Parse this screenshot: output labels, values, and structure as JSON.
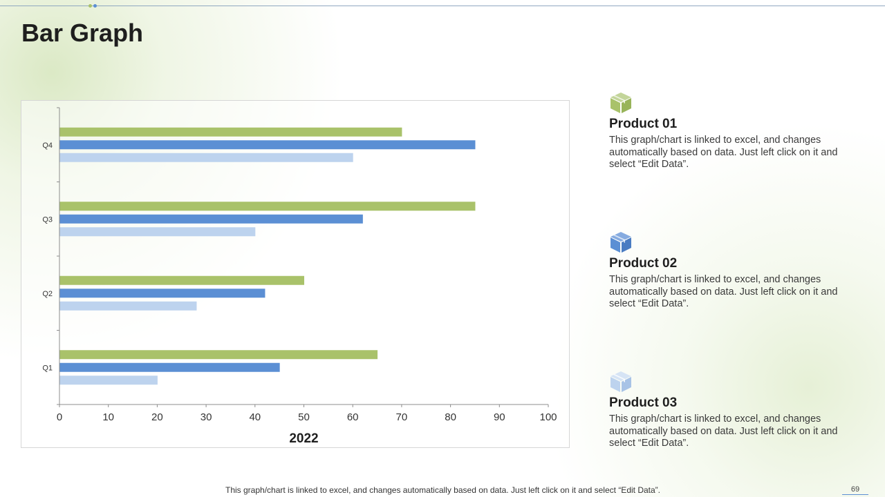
{
  "slide": {
    "title": "Bar Graph",
    "footer": "This graph/chart is linked to excel,  and changes automatically based on data. Just left click on it and select “Edit Data”.",
    "page_number": "69"
  },
  "colors": {
    "product_01": "#a9c26a",
    "product_02": "#5b8fd4",
    "product_03": "#bdd3ee"
  },
  "products": [
    {
      "icon": "box-icon",
      "color": "#a9c26a",
      "title": "Product 01",
      "description": "This graph/chart is linked to excel, and changes automatically based on data. Just left click on it and select “Edit Data”."
    },
    {
      "icon": "box-icon",
      "color": "#5b8fd4",
      "title": "Product 02",
      "description": "This graph/chart is linked to excel, and changes automatically based on data. Just left click on it and select “Edit Data”."
    },
    {
      "icon": "box-icon",
      "color": "#bdd3ee",
      "title": "Product 03",
      "description": "This graph/chart is linked to excel, and changes automatically based on data. Just left click on it and select “Edit Data”."
    }
  ],
  "chart_data": {
    "type": "bar",
    "orientation": "horizontal",
    "categories": [
      "Q1",
      "Q2",
      "Q3",
      "Q4"
    ],
    "series": [
      {
        "values": [
          65,
          50,
          85,
          70
        ],
        "color": "#a9c26a"
      },
      {
        "values": [
          45,
          42,
          62,
          85
        ],
        "color": "#5b8fd4"
      },
      {
        "values": [
          20,
          28,
          40,
          60
        ],
        "color": "#bdd3ee"
      }
    ],
    "xlim": [
      0,
      100
    ],
    "xticks": [
      "0",
      "10",
      "20",
      "30",
      "40",
      "50",
      "60",
      "70",
      "80",
      "90",
      "100"
    ],
    "xlabel": "2022",
    "ylabel": "",
    "grid": false,
    "legend": "none"
  }
}
